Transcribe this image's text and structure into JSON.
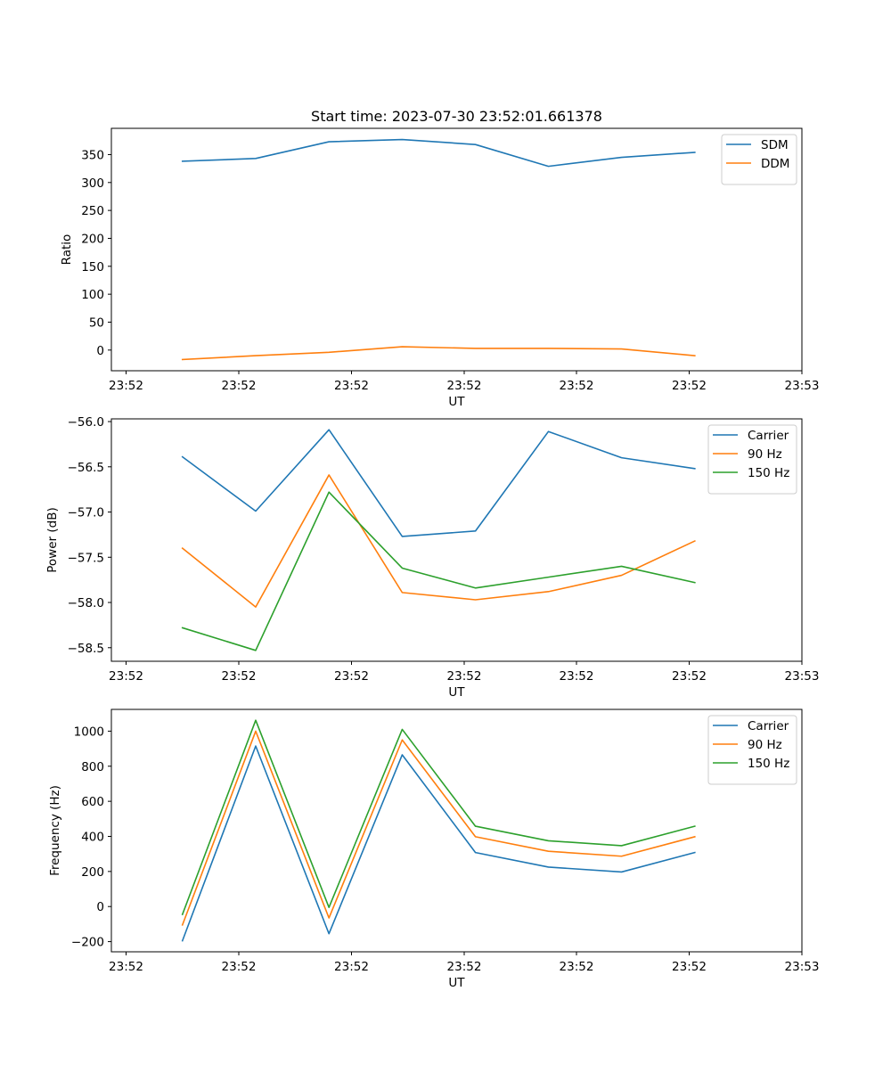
{
  "figure_title": "Start time: 2023-07-30 23:52:01.661378",
  "colors": {
    "blue": "#1f77b4",
    "orange": "#ff7f0e",
    "green": "#2ca02c"
  },
  "chart_data": [
    {
      "type": "line",
      "title": "Start time: 2023-07-30 23:52:01.661378",
      "xlabel": "UT",
      "ylabel": "Ratio",
      "xlim": [
        0,
        6
      ],
      "x": [
        0.5,
        1.15,
        1.8,
        2.45,
        3.1,
        3.75,
        4.4,
        5.05
      ],
      "x_tick_values": [
        0,
        1,
        2,
        3,
        4,
        5,
        6
      ],
      "x_tick_labels": [
        "23:52",
        "23:52",
        "23:52",
        "23:52",
        "23:52",
        "23:52",
        "23:53"
      ],
      "ylim": [
        -37,
        397
      ],
      "y_ticks": [
        0,
        50,
        100,
        150,
        200,
        250,
        300,
        350
      ],
      "legend_position": "top-right",
      "series": [
        {
          "name": "SDM",
          "color": "#1f77b4",
          "values": [
            338,
            343,
            373,
            377,
            368,
            329,
            345,
            354
          ]
        },
        {
          "name": "DDM",
          "color": "#ff7f0e",
          "values": [
            -17,
            -10,
            -4,
            6,
            3,
            3,
            2,
            -10
          ]
        }
      ]
    },
    {
      "type": "line",
      "title": "",
      "xlabel": "UT",
      "ylabel": "Power (dB)",
      "xlim": [
        0,
        6
      ],
      "x": [
        0.5,
        1.15,
        1.8,
        2.45,
        3.1,
        3.75,
        4.4,
        5.05
      ],
      "x_tick_values": [
        0,
        1,
        2,
        3,
        4,
        5,
        6
      ],
      "x_tick_labels": [
        "23:52",
        "23:52",
        "23:52",
        "23:52",
        "23:52",
        "23:52",
        "23:53"
      ],
      "ylim": [
        -58.65,
        -55.97
      ],
      "y_ticks": [
        -58.5,
        -58.0,
        -57.5,
        -57.0,
        -56.5,
        -56.0
      ],
      "y_tick_labels": [
        "−58.5",
        "−58.0",
        "−57.5",
        "−57.0",
        "−56.5",
        "−56.0"
      ],
      "legend_position": "top-right",
      "series": [
        {
          "name": "Carrier",
          "color": "#1f77b4",
          "values": [
            -56.39,
            -56.99,
            -56.09,
            -57.27,
            -57.21,
            -56.11,
            -56.4,
            -56.52
          ]
        },
        {
          "name": "90 Hz",
          "color": "#ff7f0e",
          "values": [
            -57.4,
            -58.05,
            -56.59,
            -57.89,
            -57.97,
            -57.88,
            -57.7,
            -57.32
          ]
        },
        {
          "name": "150 Hz",
          "color": "#2ca02c",
          "values": [
            -58.28,
            -58.53,
            -56.78,
            -57.62,
            -57.84,
            -57.72,
            -57.6,
            -57.78
          ]
        }
      ]
    },
    {
      "type": "line",
      "title": "",
      "xlabel": "UT",
      "ylabel": "Frequency (Hz)",
      "xlim": [
        0,
        6
      ],
      "x": [
        0.5,
        1.15,
        1.8,
        2.45,
        3.1,
        3.75,
        4.4,
        5.05
      ],
      "x_tick_values": [
        0,
        1,
        2,
        3,
        4,
        5,
        6
      ],
      "x_tick_labels": [
        "23:52",
        "23:52",
        "23:52",
        "23:52",
        "23:52",
        "23:52",
        "23:53"
      ],
      "ylim": [
        -258,
        1124
      ],
      "y_ticks": [
        -200,
        0,
        200,
        400,
        600,
        800,
        1000
      ],
      "y_tick_labels": [
        "−200",
        "0",
        "200",
        "400",
        "600",
        "800",
        "1000"
      ],
      "legend_position": "top-right",
      "series": [
        {
          "name": "Carrier",
          "color": "#1f77b4",
          "values": [
            -195,
            915,
            -155,
            865,
            308,
            225,
            197,
            308
          ]
        },
        {
          "name": "90 Hz",
          "color": "#ff7f0e",
          "values": [
            -105,
            1000,
            -65,
            950,
            398,
            315,
            287,
            398
          ]
        },
        {
          "name": "150 Hz",
          "color": "#2ca02c",
          "values": [
            -45,
            1062,
            -5,
            1010,
            458,
            375,
            347,
            458
          ]
        }
      ]
    }
  ]
}
